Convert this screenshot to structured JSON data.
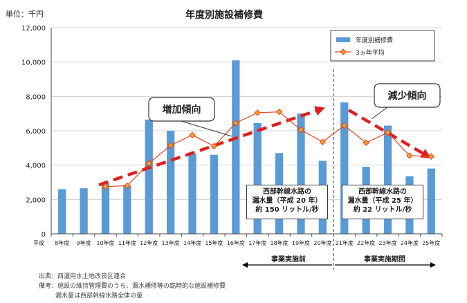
{
  "chart_data": {
    "type": "bar+line",
    "title": "年度別施設補修費",
    "unit_label": "単位：千円",
    "ylim": [
      0,
      12000
    ],
    "yticks": [
      "0",
      "2,000",
      "4,000",
      "6,000",
      "8,000",
      "10,000",
      "12,000"
    ],
    "ytick_values": [
      0,
      2000,
      4000,
      6000,
      8000,
      10000,
      12000
    ],
    "era_prefix": "平成",
    "categories": [
      "8年度",
      "9年度",
      "10年度",
      "11年度",
      "12年度",
      "13年度",
      "14年度",
      "15年度",
      "16年度",
      "17年度",
      "18年度",
      "19年度",
      "20年度",
      "21年度",
      "22年度",
      "23年度",
      "24年度",
      "25年度"
    ],
    "series": [
      {
        "name": "年度別補修費",
        "type": "bar",
        "color": "#5b9bd5",
        "values": [
          2600,
          2650,
          2950,
          2850,
          6650,
          6000,
          4650,
          4600,
          10100,
          6450,
          4700,
          7000,
          4250,
          7650,
          3900,
          6300,
          3350,
          3800
        ]
      },
      {
        "name": "3ヵ年平均",
        "type": "line",
        "color": "#e8401c",
        "values": [
          null,
          null,
          2750,
          2800,
          4100,
          5150,
          5750,
          5100,
          6450,
          7050,
          7100,
          6050,
          5350,
          6300,
          5300,
          5900,
          4550,
          4500
        ]
      }
    ],
    "legend": [
      "年度別補修費",
      "3ヵ年平均"
    ],
    "annotations": {
      "increase": "増加傾向",
      "decrease": "減少傾向",
      "box1": [
        "西部幹線水路の",
        "漏水量（平成 20 年）",
        "約 150 リットル/秒"
      ],
      "box2": [
        "西部幹線水路の",
        "漏水量（平成 25 年）",
        "約 22 リットル/秒"
      ],
      "period_before": "事業実施前",
      "period_during": "事業実施期間"
    },
    "notes": {
      "source": "出典：西濃用水土地改良区連合",
      "remark1": "備考：施設の維持管理費のうち、漏水補修等の臨時的な施設補修費",
      "remark2": "漏水量は西部幹線水路全体の量"
    }
  }
}
